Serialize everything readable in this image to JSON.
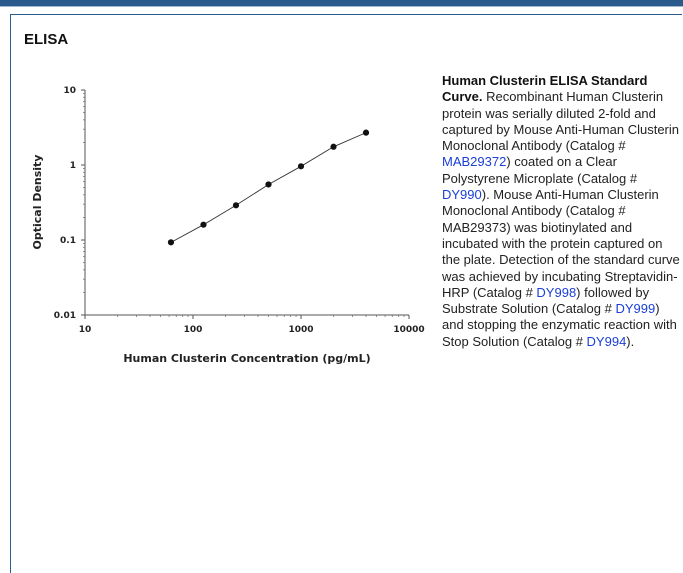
{
  "section_title": "ELISA",
  "caption": {
    "title": "Human Clusterin ELISA Standard Curve.",
    "t1": " Recombinant Human Clusterin protein was serially diluted 2-fold and captured by Mouse Anti-Human Clusterin Monoclonal Antibody (Catalog # ",
    "l1": "MAB29372",
    "t2": ") coated on a Clear Polystyrene Microplate (Catalog # ",
    "l2": "DY990",
    "t3": "). Mouse Anti-Human Clusterin Monoclonal Antibody (Catalog # MAB29373) was biotinylated and incubated with the protein captured on the plate. Detection of the standard curve was achieved by incubating Streptavidin-HRP (Catalog # ",
    "l3": "DY998",
    "t4": ") followed by Substrate Solution (Catalog # ",
    "l4": "DY999",
    "t5": ") and stopping the enzymatic reaction with Stop Solution (Catalog # ",
    "l5": "DY994",
    "t6": ")."
  },
  "chart_data": {
    "type": "scatter",
    "xlabel": "Human Clusterin Concentration (pg/mL)",
    "ylabel": "Optical Density",
    "x_scale": "log",
    "y_scale": "log",
    "xlim": [
      10,
      10000
    ],
    "ylim": [
      0.01,
      10
    ],
    "x_ticks": [
      "10",
      "100",
      "1000",
      "10000"
    ],
    "y_ticks": [
      "0.01",
      "0.1",
      "1",
      "10"
    ],
    "grid": false,
    "legend": "none",
    "fit_line": true,
    "x": [
      62.5,
      125,
      250,
      500,
      1000,
      2000,
      4000
    ],
    "y": [
      0.093,
      0.16,
      0.29,
      0.55,
      0.96,
      1.75,
      2.7
    ]
  }
}
